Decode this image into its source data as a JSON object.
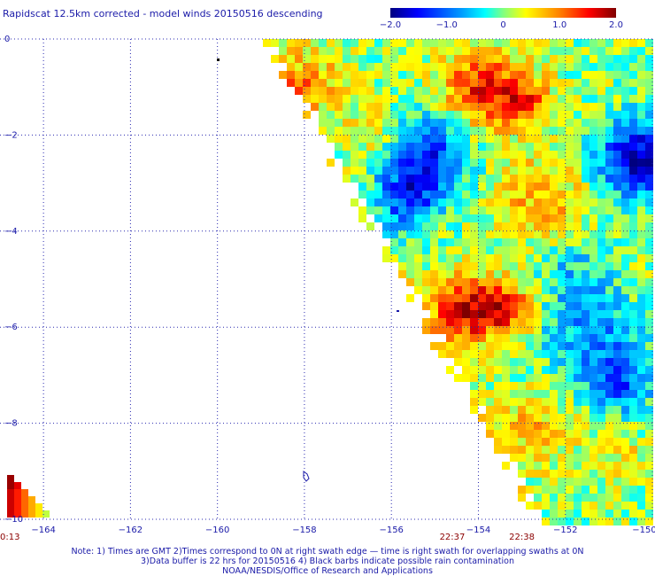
{
  "title": "Rapidscat 12.5km corrected - model winds 20150516 descending",
  "colorbar": {
    "ticks": [
      -2.0,
      -1.0,
      0,
      1.0,
      2.0
    ],
    "tick_labels": [
      "−2.0",
      "−1.0",
      "0",
      "1.0",
      "2.0"
    ],
    "colors": [
      "#00007f",
      "#0000ff",
      "#0080ff",
      "#00ffff",
      "#80ff80",
      "#ffff00",
      "#ff8000",
      "#ff0000",
      "#7f0000"
    ]
  },
  "map": {
    "lon_range": [
      -165,
      -150
    ],
    "lat_range": [
      -10,
      0
    ],
    "lon_ticks": [
      -164,
      -162,
      -160,
      -158,
      -156,
      -154,
      -152,
      -150
    ],
    "lon_tick_labels": [
      "−164",
      "−162",
      "−160",
      "−158",
      "−156",
      "−154",
      "−152",
      "−150"
    ],
    "lat_ticks": [
      0,
      -2,
      -4,
      -6,
      -8,
      -10
    ],
    "lat_tick_labels": [
      "0",
      "−2",
      "−4",
      "−6",
      "−8",
      "−10"
    ],
    "grid": true
  },
  "swath_times": [
    {
      "label": "0:13",
      "lon": -165
    },
    {
      "label": "22:37",
      "lon": -154.6
    },
    {
      "label": "22:38",
      "lon": -153.0
    }
  ],
  "notes": [
    "Note: 1) Times are GMT 2)Times correspond to 0N at right swath edge — time is right swath for overlapping swaths at 0N",
    "3)Data buffer is 22 hrs for 20150516 4) Black barbs indicate possible rain contamination",
    "NOAA/NESDIS/Office of Research and Applications"
  ]
}
